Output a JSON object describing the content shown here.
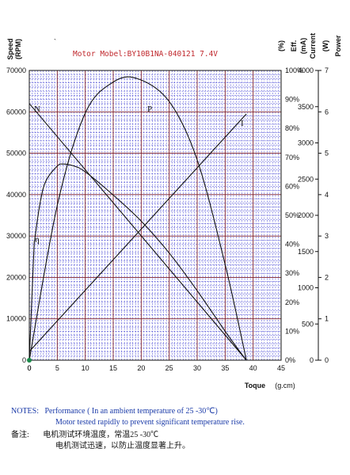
{
  "chart_data": {
    "type": "line",
    "title": "Motor Mobel:BY10B1NA-040121    7.4V",
    "x_axis": {
      "label": "Toque",
      "unit": "(g.cm)",
      "min": 0,
      "max": 45,
      "ticks": [
        0,
        5,
        10,
        15,
        20,
        25,
        30,
        35,
        40,
        45
      ]
    },
    "y_axes": [
      {
        "label": "Speed (RPM)",
        "side": "left",
        "min": 0,
        "max": 70000,
        "ticks": [
          0,
          10000,
          20000,
          30000,
          40000,
          50000,
          60000,
          70000
        ]
      },
      {
        "label": "Eff. (%)",
        "side": "right",
        "min": 0,
        "max": 100,
        "ticks": [
          "0%",
          "10%",
          "20%",
          "30%",
          "40%",
          "50%",
          "60%",
          "70%",
          "80%",
          "90%",
          "100%"
        ]
      },
      {
        "label": "Current (mA)",
        "side": "right",
        "min": 0,
        "max": 4000,
        "ticks": [
          0,
          500,
          1000,
          1500,
          2000,
          2500,
          3000,
          3500,
          4000
        ]
      },
      {
        "label": "Power (W)",
        "side": "right",
        "min": 0,
        "max": 7,
        "ticks": [
          0,
          1,
          2,
          3,
          4,
          5,
          6,
          7
        ]
      }
    ],
    "grid": true,
    "origin_marker": "0",
    "series": [
      {
        "name": "N",
        "axis": "Speed (RPM)",
        "x": [
          0,
          38.8
        ],
        "y": [
          62000,
          0
        ]
      },
      {
        "name": "I",
        "axis": "Current (mA)",
        "x": [
          0,
          38.8
        ],
        "y": [
          120,
          3400
        ]
      },
      {
        "name": "P",
        "axis": "Power (W)",
        "x": [
          0,
          5,
          10,
          15,
          19.4,
          25,
          30,
          35,
          38.8
        ],
        "y": [
          0,
          3.74,
          5.97,
          6.72,
          6.8,
          6.25,
          4.84,
          2.31,
          0
        ]
      },
      {
        "name": "η",
        "axis": "Eff. (%)",
        "x": [
          0,
          0.8,
          1,
          2,
          3,
          5,
          6,
          8,
          10,
          15,
          20,
          25,
          30,
          35,
          38,
          38.8
        ],
        "y": [
          0,
          37,
          42,
          55,
          62,
          67,
          67.7,
          67,
          65,
          57,
          48,
          37,
          24,
          10,
          2,
          0
        ]
      }
    ]
  },
  "notes": {
    "label": "NOTES:",
    "line1": "Performance ( In an ambient temperature of 25 -30℃)",
    "line2": "Motor tested rapidly to prevent significant temperature rise.",
    "cn_label": "备注:",
    "cn_line1": "电机测试环境温度，常温25 -30℃",
    "cn_line2": "电机测试迅速，以防止温度显著上升。"
  },
  "colors": {
    "title": "#c0282d",
    "notes": "#1a3aa8",
    "grid_major": "#7a1a2a",
    "grid_minor": "#3535d0",
    "text": "#111111",
    "origin_marker": "#1b8a4a"
  }
}
